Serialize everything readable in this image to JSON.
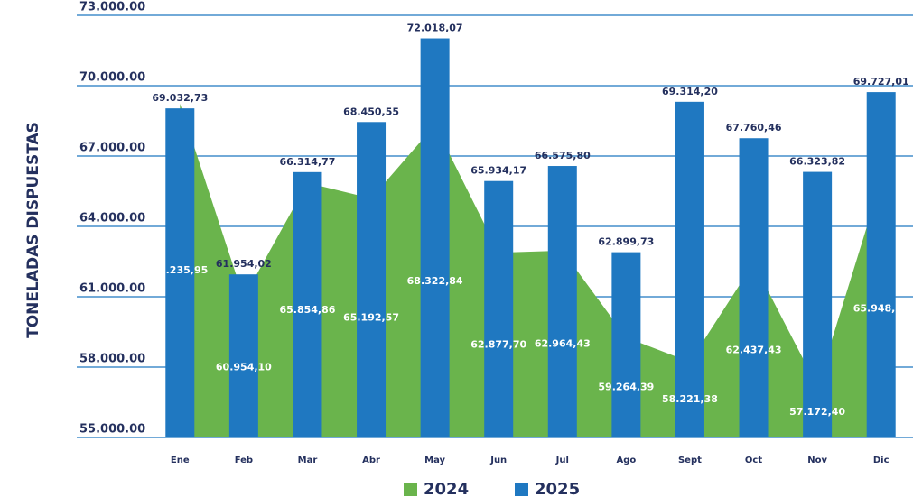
{
  "chart_data": {
    "type": "bar",
    "y_label": "TONELADAS DISPUESTAS",
    "categories": [
      "Ene",
      "Feb",
      "Mar",
      "Abr",
      "May",
      "Jun",
      "Jul",
      "Ago",
      "Sept",
      "Oct",
      "Nov",
      "Dic"
    ],
    "series": [
      {
        "name": "2024",
        "type": "area",
        "color": "#6ab44c",
        "values": [
          69235.95,
          60954.1,
          65854.86,
          65192.57,
          68322.84,
          62877.7,
          62964.43,
          59264.39,
          58221.38,
          62437.43,
          57172.4,
          65948.25
        ],
        "value_labels": [
          "69.235,95",
          "60.954,10",
          "65.854,86",
          "65.192,57",
          "68.322,84",
          "62.877,70",
          "62.964,43",
          "59.264,39",
          "58.221,38",
          "62.437,43",
          "57.172,40",
          "65.948,25"
        ]
      },
      {
        "name": "2025",
        "type": "bar",
        "color": "#1f78c1",
        "values": [
          69032.73,
          61954.02,
          66314.77,
          68450.55,
          72018.07,
          65934.17,
          66575.8,
          62899.73,
          69314.2,
          67760.46,
          66323.82,
          69727.01
        ],
        "value_labels": [
          "69.032,73",
          "61.954,02",
          "66.314,77",
          "68.450,55",
          "72.018,07",
          "65.934,17",
          "66.575,80",
          "62.899,73",
          "69.314,20",
          "67.760,46",
          "66.323,82",
          "69.727,01"
        ]
      }
    ],
    "ylim": [
      55000,
      73000
    ],
    "yticks": [
      {
        "value": 55000,
        "label": "55.000.00"
      },
      {
        "value": 58000,
        "label": "58.000.00"
      },
      {
        "value": 61000,
        "label": "61.000.00"
      },
      {
        "value": 64000,
        "label": "64.000.00"
      },
      {
        "value": 67000,
        "label": "67.000.00"
      },
      {
        "value": 70000,
        "label": "70.000.00"
      },
      {
        "value": 73000,
        "label": "73.000.00"
      }
    ],
    "grid": true,
    "legend": "bottom"
  }
}
